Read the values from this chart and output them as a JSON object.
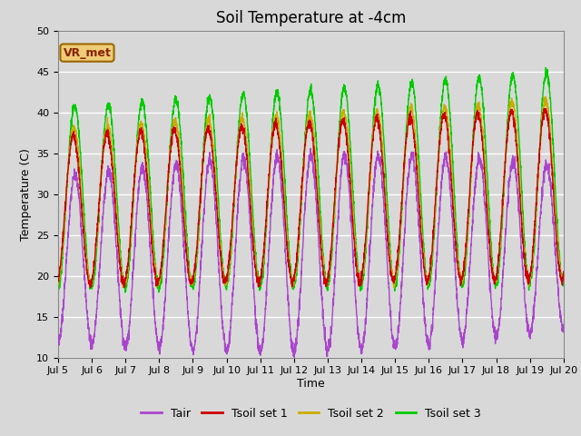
{
  "title": "Soil Temperature at -4cm",
  "xlabel": "Time",
  "ylabel": "Temperature (C)",
  "ylim": [
    10,
    50
  ],
  "x_tick_labels": [
    "Jul 5",
    "Jul 6",
    "Jul 7",
    "Jul 8",
    "Jul 9",
    "Jul 10",
    "Jul 11",
    "Jul 12",
    "Jul 13",
    "Jul 14",
    "Jul 15",
    "Jul 16",
    "Jul 17",
    "Jul 18",
    "Jul 19",
    "Jul 20"
  ],
  "background_color": "#d8d8d8",
  "plot_bg_color": "#d8d8d8",
  "legend_labels": [
    "Tair",
    "Tsoil set 1",
    "Tsoil set 2",
    "Tsoil set 3"
  ],
  "line_colors": [
    "#aa44cc",
    "#cc0000",
    "#ccaa00",
    "#00cc00"
  ],
  "annotation_text": "VR_met",
  "annotation_box_facecolor": "#eecc77",
  "annotation_box_edgecolor": "#996600",
  "annotation_text_color": "#882200",
  "days": 15,
  "n_points": 3000,
  "title_fontsize": 12,
  "axis_fontsize": 9,
  "tick_fontsize": 8,
  "legend_fontsize": 9
}
